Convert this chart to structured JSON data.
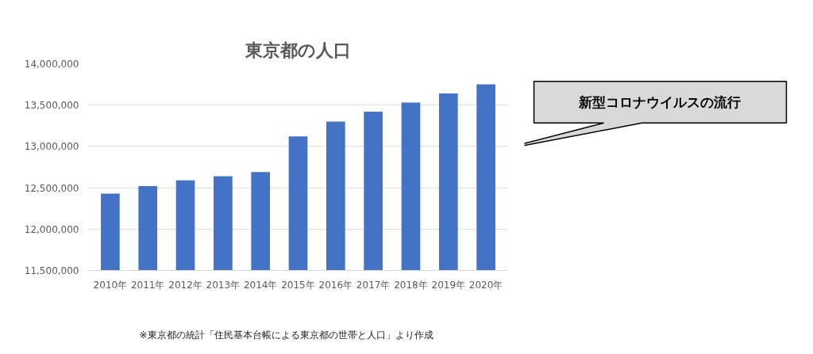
{
  "chart_data": {
    "type": "bar",
    "title": "東京都の人口",
    "categories": [
      "2010年",
      "2011年",
      "2012年",
      "2013年",
      "2014年",
      "2015年",
      "2016年",
      "2017年",
      "2018年",
      "2019年",
      "2020年"
    ],
    "values": [
      12430000,
      12520000,
      12590000,
      12640000,
      12690000,
      13120000,
      13300000,
      13420000,
      13530000,
      13640000,
      13750000
    ],
    "color": "#4472c4",
    "ylim": [
      11500000,
      14000000
    ],
    "yticks": [
      {
        "value": 11500000,
        "label": "11,500,000"
      },
      {
        "value": 12000000,
        "label": "12,000,000"
      },
      {
        "value": 12500000,
        "label": "12,500,000"
      },
      {
        "value": 13000000,
        "label": "13,000,000"
      },
      {
        "value": 13500000,
        "label": "13,500,000"
      },
      {
        "value": 14000000,
        "label": "14,000,000"
      }
    ],
    "grid": "y",
    "annotations": [
      "新型コロナウイルスの流行",
      "※東京都の統計「住民基本台帳による東京都の世帯と人口」より作成"
    ]
  }
}
